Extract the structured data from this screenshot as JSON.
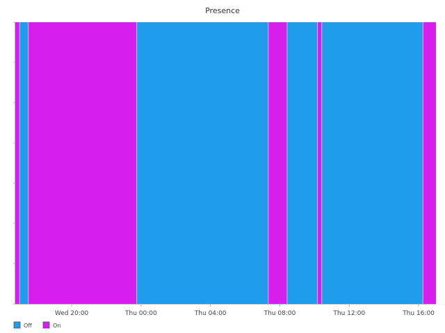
{
  "chart_data": {
    "type": "timeline",
    "title": "Presence",
    "x_range": [
      "Wed 2024-01-03 16:45",
      "Thu 2024-01-04 17:00"
    ],
    "x_ticks": [
      {
        "time": "Wed 20:00",
        "label": "Wed 20:00"
      },
      {
        "time": "Thu 00:00",
        "label": "Thu 00:00"
      },
      {
        "time": "Thu 04:00",
        "label": "Thu 04:00"
      },
      {
        "time": "Thu 08:00",
        "label": "Thu 08:00"
      },
      {
        "time": "Thu 12:00",
        "label": "Thu 12:00"
      },
      {
        "time": "Thu 16:00",
        "label": "Thu 16:00"
      }
    ],
    "states": [
      {
        "name": "Off",
        "color": "#1f9cec"
      },
      {
        "name": "On",
        "color": "#d61fec"
      }
    ],
    "segments": [
      {
        "start": "Wed 16:45",
        "end": "Wed 17:00",
        "state": "On"
      },
      {
        "start": "Wed 17:00",
        "end": "Wed 17:30",
        "state": "Off"
      },
      {
        "start": "Wed 17:30",
        "end": "Wed 23:45",
        "state": "On"
      },
      {
        "start": "Wed 23:45",
        "end": "Thu 07:20",
        "state": "Off"
      },
      {
        "start": "Thu 07:20",
        "end": "Thu 08:25",
        "state": "On"
      },
      {
        "start": "Thu 08:25",
        "end": "Thu 10:10",
        "state": "Off"
      },
      {
        "start": "Thu 10:10",
        "end": "Thu 10:25",
        "state": "On"
      },
      {
        "start": "Thu 10:25",
        "end": "Thu 16:15",
        "state": "Off"
      },
      {
        "start": "Thu 16:15",
        "end": "Thu 17:00",
        "state": "On"
      }
    ],
    "legend": {
      "position": "bottom-left",
      "entries": [
        {
          "label": "Off",
          "color": "#1f9cec"
        },
        {
          "label": "On",
          "color": "#d61fec"
        }
      ]
    },
    "grid": false
  }
}
